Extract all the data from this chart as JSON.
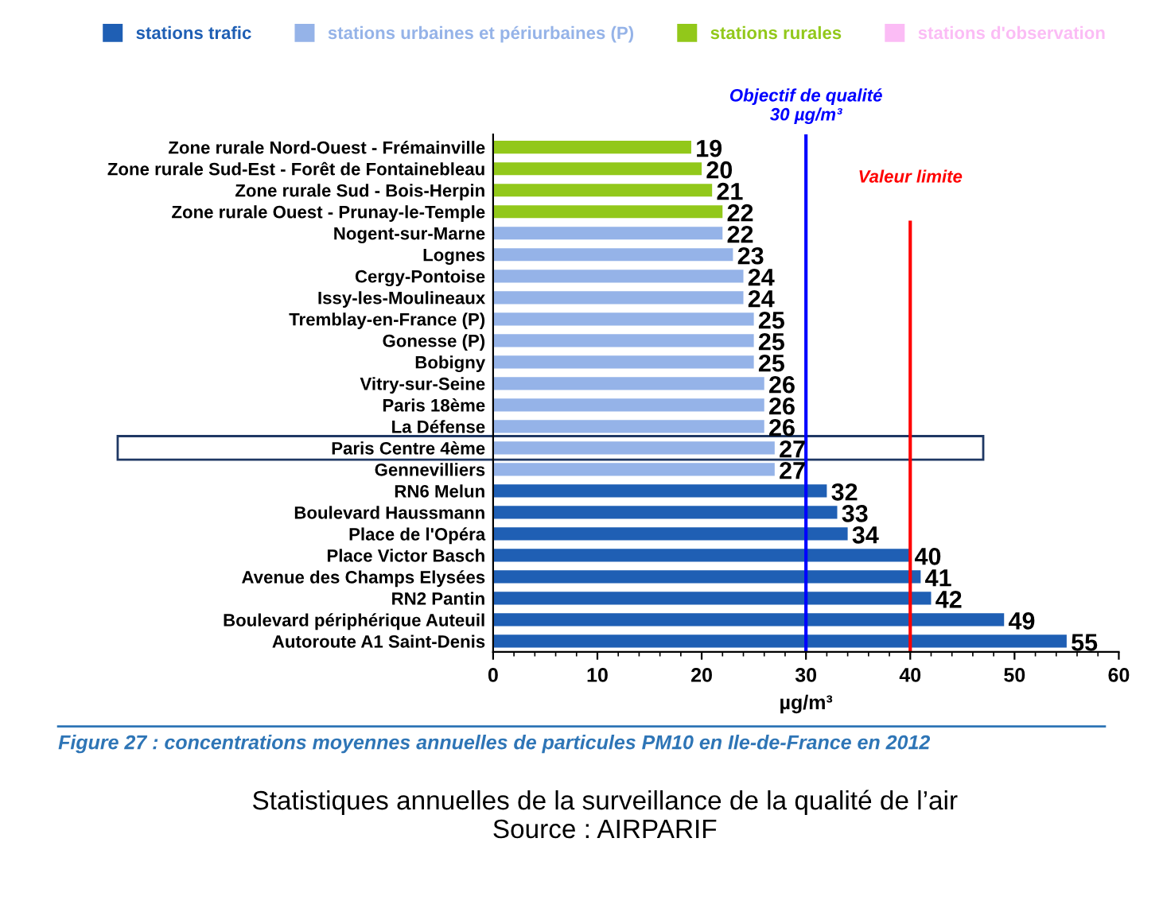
{
  "chart_data": {
    "type": "bar",
    "orientation": "horizontal",
    "categories": [
      "Zone rurale Nord-Ouest - Frémainville",
      "Zone rurale Sud-Est - Forêt de Fontainebleau",
      "Zone rurale Sud - Bois-Herpin",
      "Zone rurale Ouest - Prunay-le-Temple",
      "Nogent-sur-Marne",
      "Lognes",
      "Cergy-Pontoise",
      "Issy-les-Moulineaux",
      "Tremblay-en-France (P)",
      "Gonesse (P)",
      "Bobigny",
      "Vitry-sur-Seine",
      "Paris 18ème",
      "La Défense",
      "Paris Centre 4ème",
      "Gennevilliers",
      "RN6 Melun",
      "Boulevard Haussmann",
      "Place de l'Opéra",
      "Place Victor Basch",
      "Avenue des Champs Elysées",
      "RN2 Pantin",
      "Boulevard périphérique Auteuil",
      "Autoroute A1 Saint-Denis"
    ],
    "series": [
      {
        "name": "stations trafic",
        "color": "#1f5fb4",
        "values": [
          null,
          null,
          null,
          null,
          null,
          null,
          null,
          null,
          null,
          null,
          null,
          null,
          null,
          null,
          null,
          null,
          32,
          33,
          34,
          40,
          41,
          42,
          49,
          55
        ]
      },
      {
        "name": "stations urbaines et périurbaines (P)",
        "color": "#95b3e8",
        "values": [
          null,
          null,
          null,
          null,
          22,
          23,
          24,
          24,
          25,
          25,
          25,
          26,
          26,
          26,
          27,
          27,
          null,
          null,
          null,
          null,
          null,
          null,
          null,
          null
        ]
      },
      {
        "name": "stations rurales",
        "color": "#92c81a",
        "values": [
          19,
          20,
          21,
          22,
          null,
          null,
          null,
          null,
          null,
          null,
          null,
          null,
          null,
          null,
          null,
          null,
          null,
          null,
          null,
          null,
          null,
          null,
          null,
          null
        ]
      },
      {
        "name": "stations d'observation",
        "color": "#fbbcf5",
        "values": [
          null,
          null,
          null,
          null,
          null,
          null,
          null,
          null,
          null,
          null,
          null,
          null,
          null,
          null,
          null,
          null,
          null,
          null,
          null,
          null,
          null,
          null,
          null,
          null
        ]
      }
    ],
    "xlim": [
      0,
      60
    ],
    "xticks": [
      0,
      10,
      20,
      30,
      40,
      50,
      60
    ],
    "xlabel": "µg/m³",
    "data_labels": true,
    "legend": "top",
    "grid": false,
    "ref_lines": [
      {
        "axis": "x",
        "value": 30,
        "label": "Objectif de qualité\n30 µg/m³",
        "color": "#0000ff"
      },
      {
        "axis": "x",
        "value": 40,
        "label": "Valeur limite",
        "color": "#ff0000"
      }
    ],
    "annotations": [
      "Figure 27 : concentrations moyennes annuelles de particules PM10 en Ile-de-France en 2012",
      "Statistiques annuelles de la surveillance de la qualité de l’air\nSource : AIRPARIF"
    ]
  }
}
